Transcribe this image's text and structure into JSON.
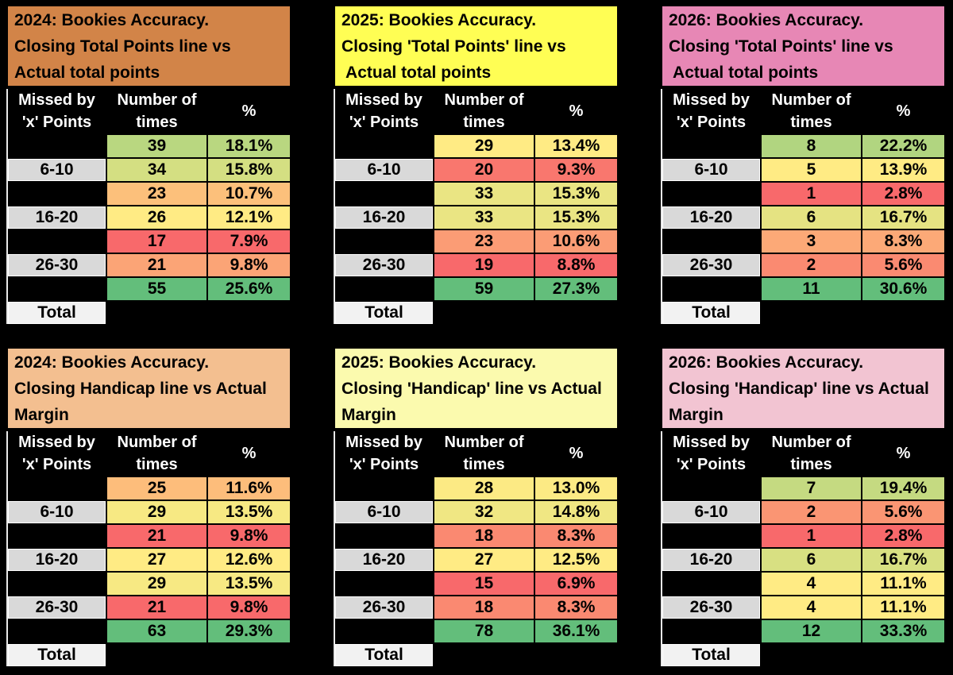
{
  "page": {
    "background": "#000000",
    "label_cell_bg": "#D9D9D9",
    "total_cell_bg": "#F2F2F2"
  },
  "chart_data": [
    {
      "type": "table",
      "title_lines": [
        "2024: Bookies Accuracy.",
        "Closing Total Points line vs",
        "Actual total points"
      ],
      "header_bg": "#D28448",
      "columns": {
        "col1": [
          "Missed by",
          "'x' Points"
        ],
        "col2": [
          "Number of",
          "times"
        ],
        "col3": "%"
      },
      "rows": [
        {
          "label": "",
          "count": "39",
          "pct": "18.1%",
          "color": "#B9D780"
        },
        {
          "label": "6-10",
          "count": "34",
          "pct": "15.8%",
          "color": "#D4DF82"
        },
        {
          "label": "",
          "count": "23",
          "pct": "10.7%",
          "color": "#FCC07B"
        },
        {
          "label": "16-20",
          "count": "26",
          "pct": "12.1%",
          "color": "#FFEB84"
        },
        {
          "label": "",
          "count": "17",
          "pct": "7.9%",
          "color": "#F8696B"
        },
        {
          "label": "26-30",
          "count": "21",
          "pct": "9.8%",
          "color": "#FBA476"
        },
        {
          "label": "",
          "count": "55",
          "pct": "25.6%",
          "color": "#63BE7B"
        }
      ],
      "total_label": "Total"
    },
    {
      "type": "table",
      "title_lines": [
        "2025: Bookies Accuracy.",
        "Closing 'Total Points' line vs",
        " Actual total points"
      ],
      "header_bg": "#FFFE54",
      "columns": {
        "col1": [
          "Missed by",
          "'x' Points"
        ],
        "col2": [
          "Number of",
          "times"
        ],
        "col3": "%"
      },
      "rows": [
        {
          "label": "",
          "count": "29",
          "pct": "13.4%",
          "color": "#FFEB84"
        },
        {
          "label": "6-10",
          "count": "20",
          "pct": "9.3%",
          "color": "#F9776E"
        },
        {
          "label": "",
          "count": "33",
          "pct": "15.3%",
          "color": "#EAE583"
        },
        {
          "label": "16-20",
          "count": "33",
          "pct": "15.3%",
          "color": "#EAE583"
        },
        {
          "label": "",
          "count": "23",
          "pct": "10.6%",
          "color": "#FB9C75"
        },
        {
          "label": "26-30",
          "count": "19",
          "pct": "8.8%",
          "color": "#F8696B"
        },
        {
          "label": "",
          "count": "59",
          "pct": "27.3%",
          "color": "#63BE7B"
        }
      ],
      "total_label": "Total"
    },
    {
      "type": "table",
      "title_lines": [
        "2026: Bookies Accuracy.",
        "Closing 'Total Points' line vs",
        " Actual total points"
      ],
      "header_bg": "#E787B5",
      "columns": {
        "col1": [
          "Missed by",
          "'x' Points"
        ],
        "col2": [
          "Number of",
          "times"
        ],
        "col3": "%"
      },
      "rows": [
        {
          "label": "",
          "count": "8",
          "pct": "22.2%",
          "color": "#B1D580"
        },
        {
          "label": "6-10",
          "count": "5",
          "pct": "13.9%",
          "color": "#FFEB84"
        },
        {
          "label": "",
          "count": "1",
          "pct": "2.8%",
          "color": "#F8696B"
        },
        {
          "label": "16-20",
          "count": "6",
          "pct": "16.7%",
          "color": "#E5E382"
        },
        {
          "label": "",
          "count": "3",
          "pct": "8.3%",
          "color": "#FCA977"
        },
        {
          "label": "26-30",
          "count": "2",
          "pct": "5.6%",
          "color": "#FA8A71"
        },
        {
          "label": "",
          "count": "11",
          "pct": "30.6%",
          "color": "#63BE7B"
        }
      ],
      "total_label": "Total"
    },
    {
      "type": "table",
      "title_lines": [
        "2024: Bookies Accuracy.",
        "Closing Handicap line vs Actual",
        "Margin"
      ],
      "header_bg": "#F3BF90",
      "columns": {
        "col1": [
          "Missed by",
          "'x' Points"
        ],
        "col2": [
          "Number of",
          "times"
        ],
        "col3": "%"
      },
      "rows": [
        {
          "label": "",
          "count": "25",
          "pct": "11.6%",
          "color": "#FDBD7B"
        },
        {
          "label": "6-10",
          "count": "29",
          "pct": "13.5%",
          "color": "#F7E983"
        },
        {
          "label": "",
          "count": "21",
          "pct": "9.8%",
          "color": "#F8696B"
        },
        {
          "label": "16-20",
          "count": "27",
          "pct": "12.6%",
          "color": "#FFEB84"
        },
        {
          "label": "",
          "count": "29",
          "pct": "13.5%",
          "color": "#F7E983"
        },
        {
          "label": "26-30",
          "count": "21",
          "pct": "9.8%",
          "color": "#F8696B"
        },
        {
          "label": "",
          "count": "63",
          "pct": "29.3%",
          "color": "#63BE7B"
        }
      ],
      "total_label": "Total"
    },
    {
      "type": "table",
      "title_lines": [
        "2025: Bookies Accuracy.",
        "Closing 'Handicap' line vs Actual",
        "Margin"
      ],
      "header_bg": "#FBFAAE",
      "columns": {
        "col1": [
          "Missed by",
          "'x' Points"
        ],
        "col2": [
          "Number of",
          "times"
        ],
        "col3": "%"
      },
      "rows": [
        {
          "label": "",
          "count": "28",
          "pct": "13.0%",
          "color": "#FCEA84"
        },
        {
          "label": "6-10",
          "count": "32",
          "pct": "14.8%",
          "color": "#F0E783"
        },
        {
          "label": "",
          "count": "18",
          "pct": "8.3%",
          "color": "#FA8971"
        },
        {
          "label": "16-20",
          "count": "27",
          "pct": "12.5%",
          "color": "#FFEB84"
        },
        {
          "label": "",
          "count": "15",
          "pct": "6.9%",
          "color": "#F8696B"
        },
        {
          "label": "26-30",
          "count": "18",
          "pct": "8.3%",
          "color": "#FA8971"
        },
        {
          "label": "",
          "count": "78",
          "pct": "36.1%",
          "color": "#63BE7B"
        }
      ],
      "total_label": "Total"
    },
    {
      "type": "table",
      "title_lines": [
        "2026: Bookies Accuracy.",
        "Closing 'Handicap' line vs Actual",
        "Margin"
      ],
      "header_bg": "#F2C4D2",
      "columns": {
        "col1": [
          "Missed by",
          "'x' Points"
        ],
        "col2": [
          "Number of",
          "times"
        ],
        "col3": "%"
      },
      "rows": [
        {
          "label": "",
          "count": "7",
          "pct": "19.4%",
          "color": "#C5DA81"
        },
        {
          "label": "6-10",
          "count": "2",
          "pct": "5.6%",
          "color": "#FA9573"
        },
        {
          "label": "",
          "count": "1",
          "pct": "2.8%",
          "color": "#F8696B"
        },
        {
          "label": "16-20",
          "count": "6",
          "pct": "16.7%",
          "color": "#D8E082"
        },
        {
          "label": "",
          "count": "4",
          "pct": "11.1%",
          "color": "#FFEB84"
        },
        {
          "label": "26-30",
          "count": "4",
          "pct": "11.1%",
          "color": "#FFEB84"
        },
        {
          "label": "",
          "count": "12",
          "pct": "33.3%",
          "color": "#63BE7B"
        }
      ],
      "total_label": "Total"
    }
  ]
}
